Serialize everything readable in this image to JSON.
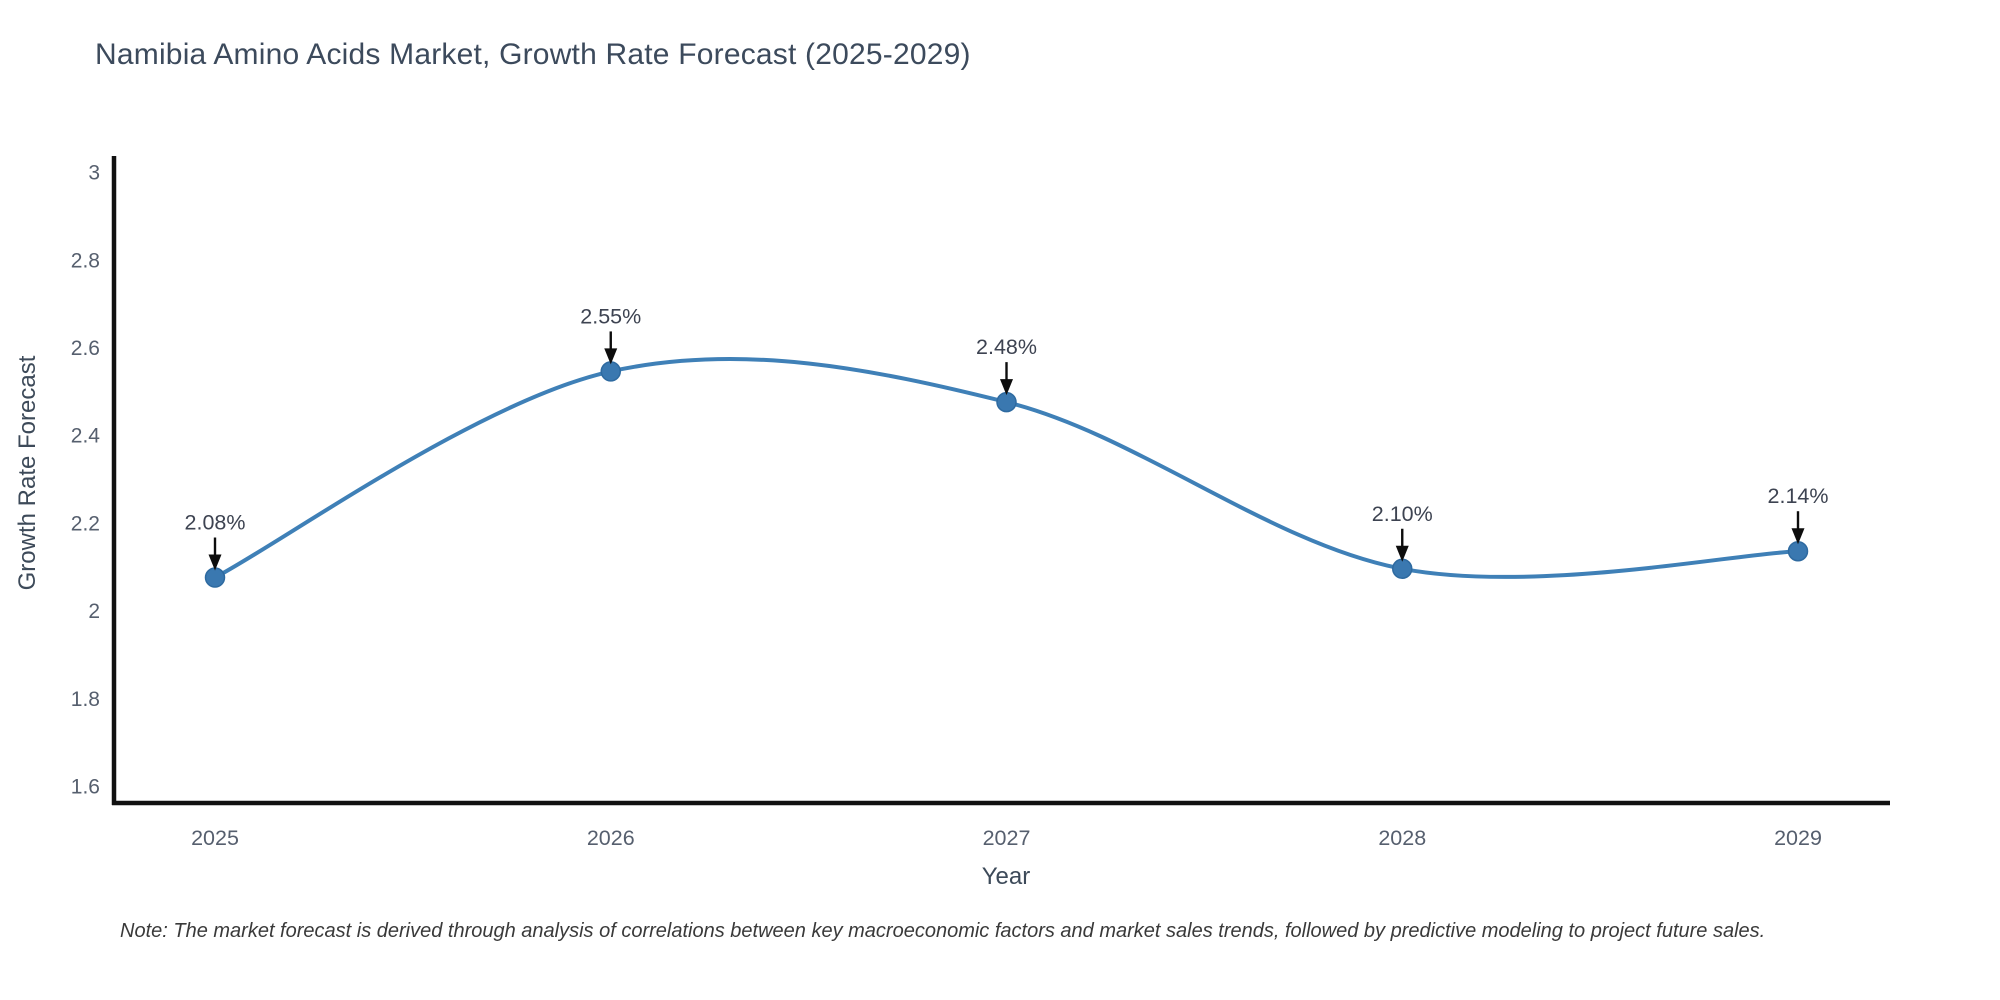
{
  "header": {
    "title": "Namibia Amino Acids Market, Growth Rate Forecast (2025-2029)"
  },
  "chart_data": {
    "type": "line",
    "title": "Namibia Amino Acids Market, Growth Rate Forecast (2025-2029)",
    "xlabel": "Year",
    "ylabel": "Growth Rate Forecast",
    "x": [
      2025,
      2026,
      2027,
      2028,
      2029
    ],
    "series": [
      {
        "name": "Growth Rate Forecast",
        "values": [
          2.08,
          2.55,
          2.48,
          2.1,
          2.14
        ],
        "point_labels": [
          "2.08%",
          "2.55%",
          "2.48%",
          "2.10%",
          "2.14%"
        ]
      }
    ],
    "x_tick_labels": [
      "2025",
      "2026",
      "2027",
      "2028",
      "2029"
    ],
    "y_ticks": [
      1.6,
      1.8,
      2,
      2.2,
      2.4,
      2.6,
      2.8,
      3
    ],
    "y_tick_labels": [
      "1.6",
      "1.8",
      "2",
      "2.2",
      "2.4",
      "2.6",
      "2.8",
      "3"
    ],
    "ylim": [
      1.55,
      3.05
    ],
    "grid": false,
    "legend_position": "none",
    "line_shape": "spline",
    "annotation_arrow": "down-arrow-icon",
    "colors": {
      "line": "#3f80b7",
      "marker": "#3a78b0",
      "marker_edge": "#2e6aa0",
      "axis": "#111111",
      "tick_label": "#565f6e",
      "annotation_text": "#3d4351",
      "arrow": "#0d0d0d",
      "title": "#3c4a5c"
    }
  },
  "footer": {
    "note": "Note: The market forecast is derived through analysis of correlations between key macroeconomic factors and market sales trends, followed by predictive modeling to project future sales."
  }
}
